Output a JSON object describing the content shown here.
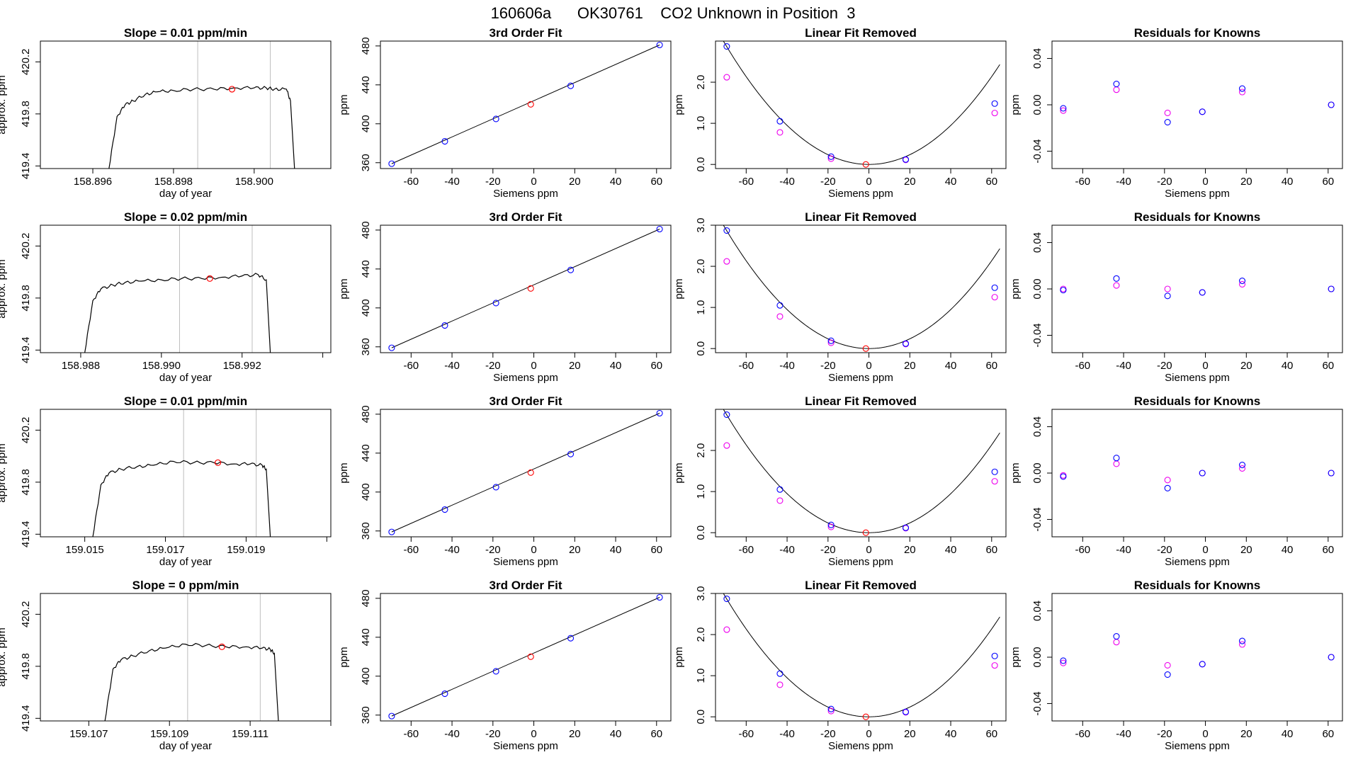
{
  "figure": {
    "title": "160606a      OK30761    CO2 Unknown in Position  3"
  },
  "colors": {
    "trace": "#000000",
    "vline": "#bebebe",
    "unknown": "#ff0000",
    "known_blue": "#0000ff",
    "known_magenta": "#ee00ee",
    "axis": "#000000",
    "fit_line": "#000000"
  },
  "chart_data": [
    {
      "row": 1,
      "panel": "time",
      "type": "line",
      "title": "Slope =  0.01  ppm/min",
      "xlabel": "day of year",
      "ylabel": "approx. ppm",
      "xticks": [
        158.896,
        158.898,
        158.9,
        158.902
      ],
      "xtick_labels": [
        "158.896",
        "158.898",
        "158.900",
        ""
      ],
      "yticks": [
        419.4,
        419.8,
        420.2
      ],
      "ytick_labels": [
        "419.4",
        "419.8",
        "420.2"
      ],
      "xlim": [
        158.8947,
        158.9019
      ],
      "ylim": [
        419.38,
        420.36
      ],
      "series": [
        {
          "name": "trace",
          "x": [
            158.8964,
            158.8966,
            158.8968,
            158.897,
            158.8973,
            158.8976,
            158.898,
            158.8985,
            158.899,
            158.8995,
            158.9,
            158.9003,
            158.9005,
            158.9008,
            158.9009,
            158.901
          ],
          "y": [
            419.38,
            419.78,
            419.87,
            419.9,
            419.95,
            419.97,
            419.98,
            419.99,
            419.99,
            420.0,
            420.0,
            420.0,
            419.99,
            419.99,
            419.9,
            419.38
          ]
        }
      ],
      "vlines": [
        158.8986,
        158.9004
      ],
      "marker": {
        "x": 158.89945,
        "y": 419.99
      }
    },
    {
      "row": 1,
      "panel": "fit",
      "type": "scatter",
      "title": "3rd Order Fit",
      "xlabel": "Siemens ppm",
      "ylabel": "ppm",
      "xticks": [
        -60,
        -40,
        -20,
        0,
        20,
        40,
        60
      ],
      "yticks": [
        360,
        400,
        440,
        480
      ],
      "xlim": [
        -75,
        67
      ],
      "ylim": [
        354,
        485
      ],
      "line": {
        "x": [
          -69.5,
          61.5
        ],
        "y": [
          359,
          481
        ]
      },
      "knowns": {
        "x": [
          -69.5,
          -43.5,
          -18.5,
          18,
          61.5
        ],
        "y": [
          359,
          382,
          405,
          439,
          481
        ]
      },
      "unknown": {
        "x": [
          -1.5
        ],
        "y": [
          420
        ]
      }
    },
    {
      "row": 1,
      "panel": "linear_removed",
      "type": "scatter",
      "title": "Linear Fit Removed",
      "xlabel": "Siemens ppm",
      "ylabel": "ppm",
      "xticks": [
        -60,
        -40,
        -20,
        0,
        20,
        40,
        60
      ],
      "yticks": [
        0.0,
        1.0,
        2.0
      ],
      "ytick_labels": [
        "0.0",
        "1.0",
        "2.0"
      ],
      "xlim": [
        -75,
        67
      ],
      "ylim": [
        -0.1,
        3.0
      ],
      "curve": {
        "a": 0.000593,
        "b": 0.0,
        "c": 0.0
      },
      "knowns": {
        "x": [
          -69.5,
          -43.5,
          -18.5,
          18,
          61.5
        ],
        "y": [
          2.87,
          1.05,
          0.19,
          0.12,
          1.48
        ]
      },
      "magenta": {
        "x": [
          -69.5,
          -43.5,
          -18.5,
          18,
          61.5
        ],
        "y": [
          2.12,
          0.78,
          0.14,
          0.11,
          1.25
        ]
      },
      "unknown": {
        "x": [
          -1.5
        ],
        "y": [
          0.0
        ]
      }
    },
    {
      "row": 1,
      "panel": "residuals",
      "type": "scatter",
      "title": "Residuals for Knowns",
      "xlabel": "Siemens ppm",
      "ylabel": "ppm",
      "xticks": [
        -60,
        -40,
        -20,
        0,
        20,
        40,
        60
      ],
      "yticks": [
        -0.04,
        0.0,
        0.04
      ],
      "ytick_labels": [
        "-0.04",
        "0.00",
        "0.04"
      ],
      "xlim": [
        -75,
        67
      ],
      "ylim": [
        -0.055,
        0.055
      ],
      "blue": {
        "x": [
          -69.5,
          -43.5,
          -18.5,
          -1.5,
          18,
          61.5
        ],
        "y": [
          -0.003,
          0.018,
          -0.015,
          -0.006,
          0.014,
          0.0
        ]
      },
      "magenta": {
        "x": [
          -69.5,
          -43.5,
          -18.5,
          -1.5,
          18,
          61.5
        ],
        "y": [
          -0.005,
          0.013,
          -0.007,
          -0.006,
          0.011,
          0.0
        ]
      }
    },
    {
      "row": 2,
      "panel": "time",
      "type": "line",
      "title": "Slope =  0.02  ppm/min",
      "xlabel": "day of year",
      "ylabel": "approx. ppm",
      "xticks": [
        158.988,
        158.99,
        158.992,
        158.994
      ],
      "xtick_labels": [
        "158.988",
        "158.990",
        "158.992",
        ""
      ],
      "yticks": [
        419.4,
        419.8,
        420.2
      ],
      "ytick_labels": [
        "419.4",
        "419.8",
        "420.2"
      ],
      "xlim": [
        158.987,
        158.9942
      ],
      "ylim": [
        419.38,
        420.36
      ],
      "series": [
        {
          "name": "trace",
          "x": [
            158.9881,
            158.9883,
            158.9885,
            158.9888,
            158.9891,
            158.9895,
            158.99,
            158.9905,
            158.991,
            158.9915,
            158.992,
            158.9924,
            158.9926,
            158.9927
          ],
          "y": [
            419.38,
            419.78,
            419.87,
            419.9,
            419.92,
            419.93,
            419.94,
            419.95,
            419.95,
            419.96,
            419.97,
            419.98,
            419.94,
            419.38
          ]
        }
      ],
      "vlines": [
        158.99045,
        158.99225
      ],
      "marker": {
        "x": 158.9912,
        "y": 419.95
      }
    },
    {
      "row": 2,
      "panel": "fit",
      "type": "scatter",
      "title": "3rd Order Fit",
      "xlabel": "Siemens ppm",
      "ylabel": "ppm",
      "xticks": [
        -60,
        -40,
        -20,
        0,
        20,
        40,
        60
      ],
      "yticks": [
        360,
        400,
        440,
        480
      ],
      "xlim": [
        -75,
        67
      ],
      "ylim": [
        354,
        485
      ],
      "line": {
        "x": [
          -69.5,
          61.5
        ],
        "y": [
          359,
          481
        ]
      },
      "knowns": {
        "x": [
          -69.5,
          -43.5,
          -18.5,
          18,
          61.5
        ],
        "y": [
          359,
          382,
          405,
          439,
          481
        ]
      },
      "unknown": {
        "x": [
          -1.5
        ],
        "y": [
          420
        ]
      }
    },
    {
      "row": 2,
      "panel": "linear_removed",
      "type": "scatter",
      "title": "Linear Fit Removed",
      "xlabel": "Siemens ppm",
      "ylabel": "ppm",
      "xticks": [
        -60,
        -40,
        -20,
        0,
        20,
        40,
        60
      ],
      "yticks": [
        0.0,
        1.0,
        2.0,
        3.0
      ],
      "ytick_labels": [
        "0.0",
        "1.0",
        "2.0",
        "3.0"
      ],
      "xlim": [
        -75,
        67
      ],
      "ylim": [
        -0.1,
        3.0
      ],
      "curve": {
        "a": 0.000593,
        "b": 0.0,
        "c": 0.0
      },
      "knowns": {
        "x": [
          -69.5,
          -43.5,
          -18.5,
          18,
          61.5
        ],
        "y": [
          2.87,
          1.05,
          0.19,
          0.12,
          1.48
        ]
      },
      "magenta": {
        "x": [
          -69.5,
          -43.5,
          -18.5,
          18,
          61.5
        ],
        "y": [
          2.12,
          0.78,
          0.14,
          0.11,
          1.25
        ]
      },
      "unknown": {
        "x": [
          -1.5
        ],
        "y": [
          0.0
        ]
      }
    },
    {
      "row": 2,
      "panel": "residuals",
      "type": "scatter",
      "title": "Residuals for Knowns",
      "xlabel": "Siemens ppm",
      "ylabel": "ppm",
      "xticks": [
        -60,
        -40,
        -20,
        0,
        20,
        40,
        60
      ],
      "yticks": [
        -0.04,
        0.0,
        0.04
      ],
      "ytick_labels": [
        "-0.04",
        "0.00",
        "0.04"
      ],
      "xlim": [
        -75,
        67
      ],
      "ylim": [
        -0.055,
        0.055
      ],
      "blue": {
        "x": [
          -69.5,
          -43.5,
          -18.5,
          -1.5,
          18,
          61.5
        ],
        "y": [
          -0.001,
          0.009,
          -0.006,
          -0.003,
          0.007,
          0.0
        ]
      },
      "magenta": {
        "x": [
          -69.5,
          -43.5,
          -18.5,
          -1.5,
          18,
          61.5
        ],
        "y": [
          0.0,
          0.003,
          0.0,
          -0.003,
          0.004,
          0.0
        ]
      }
    },
    {
      "row": 3,
      "panel": "time",
      "type": "line",
      "title": "Slope =  0.01  ppm/min",
      "xlabel": "day of year",
      "ylabel": "approx. ppm",
      "xticks": [
        159.015,
        159.017,
        159.019,
        159.021
      ],
      "xtick_labels": [
        "159.015",
        "159.017",
        "159.019",
        ""
      ],
      "yticks": [
        419.4,
        419.8,
        420.2
      ],
      "ytick_labels": [
        "419.4",
        "419.8",
        "420.2"
      ],
      "xlim": [
        159.0139,
        159.0211
      ],
      "ylim": [
        419.38,
        420.36
      ],
      "series": [
        {
          "name": "trace",
          "x": [
            159.0152,
            159.0154,
            159.0156,
            159.0159,
            159.0163,
            159.0167,
            159.0172,
            159.0177,
            159.0182,
            159.0187,
            159.0191,
            159.0194,
            159.0195,
            159.0196
          ],
          "y": [
            419.38,
            419.78,
            419.87,
            419.9,
            419.92,
            419.93,
            419.96,
            419.95,
            419.95,
            419.94,
            419.94,
            419.93,
            419.9,
            419.38
          ]
        }
      ],
      "vlines": [
        159.01745,
        159.01925
      ],
      "marker": {
        "x": 159.0183,
        "y": 419.95
      }
    },
    {
      "row": 3,
      "panel": "fit",
      "type": "scatter",
      "title": "3rd Order Fit",
      "xlabel": "Siemens ppm",
      "ylabel": "ppm",
      "xticks": [
        -60,
        -40,
        -20,
        0,
        20,
        40,
        60
      ],
      "yticks": [
        360,
        400,
        440,
        480
      ],
      "xlim": [
        -75,
        67
      ],
      "ylim": [
        354,
        485
      ],
      "line": {
        "x": [
          -69.5,
          61.5
        ],
        "y": [
          359,
          481
        ]
      },
      "knowns": {
        "x": [
          -69.5,
          -43.5,
          -18.5,
          18,
          61.5
        ],
        "y": [
          359,
          382,
          405,
          439,
          481
        ]
      },
      "unknown": {
        "x": [
          -1.5
        ],
        "y": [
          420
        ]
      }
    },
    {
      "row": 3,
      "panel": "linear_removed",
      "type": "scatter",
      "title": "Linear Fit Removed",
      "xlabel": "Siemens ppm",
      "ylabel": "ppm",
      "xticks": [
        -60,
        -40,
        -20,
        0,
        20,
        40,
        60
      ],
      "yticks": [
        0.0,
        1.0,
        2.0
      ],
      "ytick_labels": [
        "0.0",
        "1.0",
        "2.0"
      ],
      "xlim": [
        -75,
        67
      ],
      "ylim": [
        -0.1,
        3.0
      ],
      "curve": {
        "a": 0.000593,
        "b": 0.0,
        "c": 0.0
      },
      "knowns": {
        "x": [
          -69.5,
          -43.5,
          -18.5,
          18,
          61.5
        ],
        "y": [
          2.87,
          1.05,
          0.19,
          0.12,
          1.48
        ]
      },
      "magenta": {
        "x": [
          -69.5,
          -43.5,
          -18.5,
          18,
          61.5
        ],
        "y": [
          2.12,
          0.78,
          0.14,
          0.11,
          1.25
        ]
      },
      "unknown": {
        "x": [
          -1.5
        ],
        "y": [
          0.0
        ]
      }
    },
    {
      "row": 3,
      "panel": "residuals",
      "type": "scatter",
      "title": "Residuals for Knowns",
      "xlabel": "Siemens ppm",
      "ylabel": "ppm",
      "xticks": [
        -60,
        -40,
        -20,
        0,
        20,
        40,
        60
      ],
      "yticks": [
        -0.04,
        0.0,
        0.04
      ],
      "ytick_labels": [
        "-0.04",
        "0.00",
        "0.04"
      ],
      "xlim": [
        -75,
        67
      ],
      "ylim": [
        -0.055,
        0.055
      ],
      "blue": {
        "x": [
          -69.5,
          -43.5,
          -18.5,
          -1.5,
          18,
          61.5
        ],
        "y": [
          -0.003,
          0.013,
          -0.013,
          0.0,
          0.007,
          0.0
        ]
      },
      "magenta": {
        "x": [
          -69.5,
          -43.5,
          -18.5,
          -1.5,
          18,
          61.5
        ],
        "y": [
          -0.002,
          0.008,
          -0.006,
          0.0,
          0.004,
          0.0
        ]
      }
    },
    {
      "row": 4,
      "panel": "time",
      "type": "line",
      "title": "Slope =  0  ppm/min",
      "xlabel": "day of year",
      "ylabel": "approx. ppm",
      "xticks": [
        159.107,
        159.109,
        159.111,
        159.113
      ],
      "xtick_labels": [
        "159.107",
        "159.109",
        "159.111",
        ""
      ],
      "yticks": [
        419.4,
        419.8,
        420.2
      ],
      "ytick_labels": [
        "419.4",
        "419.8",
        "420.2"
      ],
      "xlim": [
        159.1058,
        159.113
      ],
      "ylim": [
        419.38,
        420.36
      ],
      "series": [
        {
          "name": "trace",
          "x": [
            159.1074,
            159.1076,
            159.1078,
            159.1081,
            159.1085,
            159.1089,
            159.1094,
            159.1099,
            159.1104,
            159.1109,
            159.1113,
            159.1115,
            159.1116,
            159.1117
          ],
          "y": [
            419.38,
            419.78,
            419.85,
            419.88,
            419.92,
            419.94,
            419.97,
            419.96,
            419.95,
            419.95,
            419.94,
            419.93,
            419.9,
            419.38
          ]
        }
      ],
      "vlines": [
        159.10945,
        159.11125
      ],
      "marker": {
        "x": 159.1103,
        "y": 419.95
      }
    },
    {
      "row": 4,
      "panel": "fit",
      "type": "scatter",
      "title": "3rd Order Fit",
      "xlabel": "Siemens ppm",
      "ylabel": "ppm",
      "xticks": [
        -60,
        -40,
        -20,
        0,
        20,
        40,
        60
      ],
      "yticks": [
        360,
        400,
        440,
        480
      ],
      "xlim": [
        -75,
        67
      ],
      "ylim": [
        354,
        485
      ],
      "line": {
        "x": [
          -69.5,
          61.5
        ],
        "y": [
          359,
          481
        ]
      },
      "knowns": {
        "x": [
          -69.5,
          -43.5,
          -18.5,
          18,
          61.5
        ],
        "y": [
          359,
          382,
          405,
          439,
          481
        ]
      },
      "unknown": {
        "x": [
          -1.5
        ],
        "y": [
          420
        ]
      }
    },
    {
      "row": 4,
      "panel": "linear_removed",
      "type": "scatter",
      "title": "Linear Fit Removed",
      "xlabel": "Siemens ppm",
      "ylabel": "ppm",
      "xticks": [
        -60,
        -40,
        -20,
        0,
        20,
        40,
        60
      ],
      "yticks": [
        0.0,
        1.0,
        2.0,
        3.0
      ],
      "ytick_labels": [
        "0.0",
        "1.0",
        "2.0",
        "3.0"
      ],
      "xlim": [
        -75,
        67
      ],
      "ylim": [
        -0.1,
        3.0
      ],
      "curve": {
        "a": 0.000593,
        "b": 0.0,
        "c": 0.0
      },
      "knowns": {
        "x": [
          -69.5,
          -43.5,
          -18.5,
          18,
          61.5
        ],
        "y": [
          2.87,
          1.05,
          0.19,
          0.12,
          1.48
        ]
      },
      "magenta": {
        "x": [
          -69.5,
          -43.5,
          -18.5,
          18,
          61.5
        ],
        "y": [
          2.12,
          0.78,
          0.14,
          0.11,
          1.25
        ]
      },
      "unknown": {
        "x": [
          -1.5
        ],
        "y": [
          0.0
        ]
      }
    },
    {
      "row": 4,
      "panel": "residuals",
      "type": "scatter",
      "title": "Residuals for Knowns",
      "xlabel": "Siemens ppm",
      "ylabel": "ppm",
      "xticks": [
        -60,
        -40,
        -20,
        0,
        20,
        40,
        60
      ],
      "yticks": [
        -0.04,
        0.0,
        0.04
      ],
      "ytick_labels": [
        "-0.04",
        "0.00",
        "0.04"
      ],
      "xlim": [
        -75,
        67
      ],
      "ylim": [
        -0.055,
        0.055
      ],
      "blue": {
        "x": [
          -69.5,
          -43.5,
          -18.5,
          -1.5,
          18,
          61.5
        ],
        "y": [
          -0.003,
          0.018,
          -0.015,
          -0.006,
          0.014,
          0.0
        ]
      },
      "magenta": {
        "x": [
          -69.5,
          -43.5,
          -18.5,
          -1.5,
          18,
          61.5
        ],
        "y": [
          -0.005,
          0.013,
          -0.007,
          -0.006,
          0.011,
          0.0
        ]
      }
    }
  ]
}
